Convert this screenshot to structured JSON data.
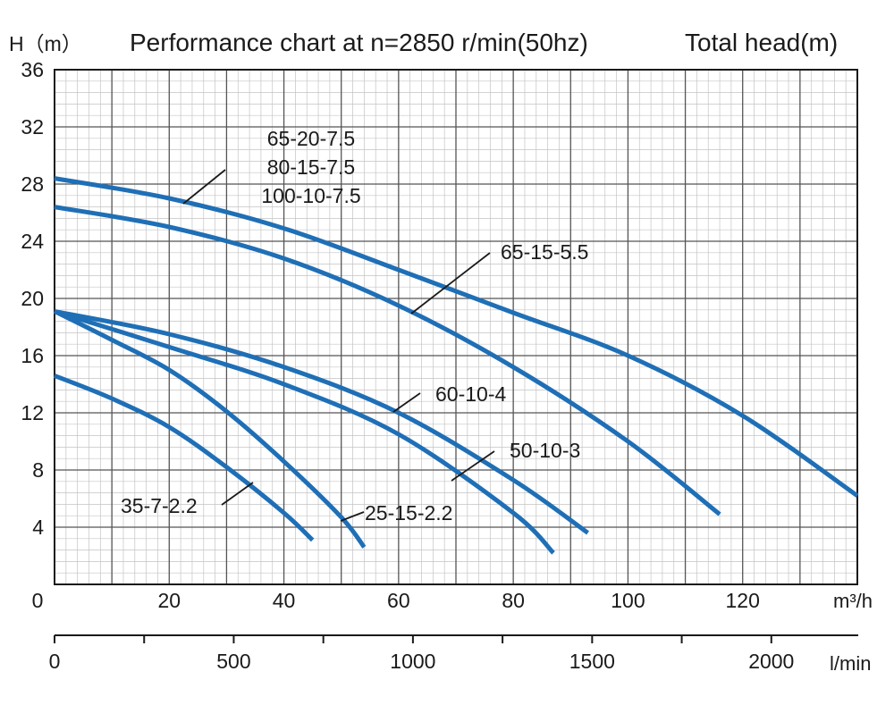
{
  "chart_data": {
    "type": "line",
    "title": "Performance chart at n=2850 r/min(50hz)",
    "ylabel": "H（m）",
    "y2label": "Total head(m)",
    "x_unit_label": "m³/h",
    "x2_unit_label": "l/min",
    "xlim": [
      0,
      140
    ],
    "ylim": [
      0,
      36
    ],
    "x2lim": [
      0,
      2240
    ],
    "x_ticks": [
      0,
      20,
      40,
      60,
      80,
      100,
      120
    ],
    "x_tick_labels": [
      "0",
      "20",
      "40",
      "60",
      "80",
      "100",
      "120"
    ],
    "y_ticks": [
      4,
      8,
      12,
      16,
      20,
      24,
      28,
      32,
      36
    ],
    "y_tick_labels": [
      "4",
      "8",
      "12",
      "16",
      "20",
      "24",
      "28",
      "32",
      "36"
    ],
    "x2_ticks": [
      0,
      250,
      500,
      750,
      1000,
      1250,
      1500,
      1750,
      2000
    ],
    "x2_tick_labels": [
      "0",
      "500",
      "1000",
      "1500",
      "2000"
    ],
    "x2_label_values": [
      0,
      500,
      1000,
      1500,
      2000
    ],
    "grid": true,
    "line_color": "#1f6fb6",
    "series": [
      {
        "name": "65-20-7.5 / 80-15-7.5 / 100-10-7.5",
        "label_lines": [
          "65-20-7.5",
          "80-15-7.5",
          "100-10-7.5"
        ],
        "x": [
          0,
          20,
          40,
          60,
          80,
          100,
          120,
          140
        ],
        "y": [
          28.4,
          27.0,
          24.9,
          22.0,
          19.0,
          16.0,
          11.8,
          6.2
        ]
      },
      {
        "name": "65-15-5.5",
        "label_lines": [
          "65-15-5.5"
        ],
        "x": [
          0,
          20,
          40,
          60,
          80,
          100,
          116
        ],
        "y": [
          26.4,
          25.0,
          22.8,
          19.5,
          15.2,
          10.0,
          4.9
        ]
      },
      {
        "name": "60-10-4",
        "label_lines": [
          "60-10-4"
        ],
        "x": [
          0,
          20,
          40,
          60,
          80,
          93
        ],
        "y": [
          19.1,
          17.5,
          15.2,
          12.0,
          7.3,
          3.6
        ]
      },
      {
        "name": "50-10-3",
        "label_lines": [
          "50-10-3"
        ],
        "x": [
          0,
          20,
          40,
          60,
          80,
          87
        ],
        "y": [
          19.1,
          16.6,
          14.0,
          10.5,
          5.0,
          2.2
        ]
      },
      {
        "name": "25-15-2.2",
        "label_lines": [
          "25-15-2.2"
        ],
        "x": [
          0,
          10,
          20,
          30,
          40,
          50,
          54
        ],
        "y": [
          19.1,
          17.1,
          15.0,
          12.1,
          8.6,
          4.7,
          2.6
        ]
      },
      {
        "name": "35-7-2.2",
        "label_lines": [
          "35-7-2.2"
        ],
        "x": [
          0,
          10,
          20,
          30,
          40,
          45
        ],
        "y": [
          14.6,
          13.0,
          11.0,
          8.2,
          5.0,
          3.1
        ]
      }
    ]
  }
}
